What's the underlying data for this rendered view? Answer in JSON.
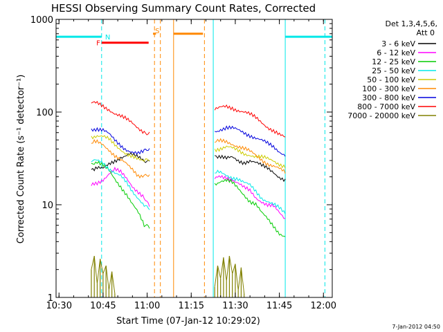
{
  "chart_data": {
    "type": "line",
    "title": "HESSI Observing Summary Count Rates, Corrected",
    "xlabel": "Start Time (07-Jan-12 10:29:02)",
    "ylabel": "Corrected Count Rate (s⁻¹ detector⁻¹)",
    "date_stamp": "7-Jan-2012 04:50",
    "x_unit": "minutes after 10:29:02",
    "xlim": [
      0,
      94
    ],
    "ylim": [
      1,
      1000
    ],
    "y_scale": "log",
    "x_ticks": [
      {
        "label": "10:30",
        "value": 1
      },
      {
        "label": "10:45",
        "value": 16
      },
      {
        "label": "11:00",
        "value": 31
      },
      {
        "label": "11:15",
        "value": 46
      },
      {
        "label": "11:30",
        "value": 61
      },
      {
        "label": "11:45",
        "value": 76
      },
      {
        "label": "12:00",
        "value": 91
      }
    ],
    "y_ticks": [
      {
        "label": "1",
        "value": 1
      },
      {
        "label": "10",
        "value": 10
      },
      {
        "label": "100",
        "value": 100
      },
      {
        "label": "1000",
        "value": 1000
      }
    ],
    "legend": {
      "placement": "right",
      "header": [
        "Det 1,3,4,5,6,",
        "Att 0"
      ]
    },
    "series": [
      {
        "name": "3 - 6 keV",
        "color": "#000000",
        "points": [
          [
            12,
            24
          ],
          [
            14,
            25
          ],
          [
            16,
            24
          ],
          [
            18,
            27
          ],
          [
            20,
            30
          ],
          [
            22,
            33
          ],
          [
            25,
            35
          ],
          [
            28,
            32
          ],
          [
            30,
            30
          ],
          [
            31.8,
            28
          ],
          [
            54,
            34
          ],
          [
            56,
            33
          ],
          [
            58,
            31
          ],
          [
            60,
            32
          ],
          [
            62,
            30
          ],
          [
            64,
            29
          ],
          [
            66,
            30
          ],
          [
            68,
            28
          ],
          [
            70,
            26
          ],
          [
            72,
            25
          ],
          [
            74,
            23
          ],
          [
            76,
            20
          ],
          [
            78,
            18
          ]
        ]
      },
      {
        "name": "6 - 12 keV",
        "color": "#ff00ff",
        "points": [
          [
            12,
            16
          ],
          [
            14,
            17
          ],
          [
            16,
            19
          ],
          [
            18,
            22
          ],
          [
            20,
            24
          ],
          [
            22,
            22
          ],
          [
            24,
            19
          ],
          [
            26,
            16
          ],
          [
            28,
            14
          ],
          [
            30,
            12
          ],
          [
            31.8,
            10
          ],
          [
            54,
            19
          ],
          [
            56,
            20
          ],
          [
            58,
            20
          ],
          [
            60,
            19
          ],
          [
            62,
            17
          ],
          [
            64,
            15
          ],
          [
            66,
            14
          ],
          [
            68,
            12
          ],
          [
            70,
            11
          ],
          [
            72,
            10
          ],
          [
            74,
            9.5
          ],
          [
            76,
            8
          ],
          [
            78,
            7
          ]
        ]
      },
      {
        "name": "12 - 25 keV",
        "color": "#00cc00",
        "points": [
          [
            12,
            28
          ],
          [
            14,
            29
          ],
          [
            16,
            26
          ],
          [
            18,
            23
          ],
          [
            20,
            19
          ],
          [
            22,
            16
          ],
          [
            24,
            13
          ],
          [
            26,
            10
          ],
          [
            28,
            8
          ],
          [
            30,
            6
          ],
          [
            31.8,
            5.5
          ],
          [
            54,
            17
          ],
          [
            56,
            18
          ],
          [
            58,
            18
          ],
          [
            60,
            17
          ],
          [
            62,
            15
          ],
          [
            64,
            13
          ],
          [
            66,
            11
          ],
          [
            68,
            10
          ],
          [
            70,
            8
          ],
          [
            72,
            7
          ],
          [
            74,
            6
          ],
          [
            76,
            5
          ],
          [
            78,
            4.5
          ]
        ]
      },
      {
        "name": "25 - 50 keV",
        "color": "#00e8e8",
        "points": [
          [
            12,
            29
          ],
          [
            14,
            30
          ],
          [
            16,
            29
          ],
          [
            18,
            25
          ],
          [
            20,
            22
          ],
          [
            22,
            20
          ],
          [
            24,
            17
          ],
          [
            26,
            14
          ],
          [
            28,
            12
          ],
          [
            30,
            10
          ],
          [
            31.8,
            9.5
          ],
          [
            54,
            22
          ],
          [
            56,
            22
          ],
          [
            58,
            21
          ],
          [
            60,
            20
          ],
          [
            62,
            19
          ],
          [
            64,
            17
          ],
          [
            66,
            16
          ],
          [
            68,
            14
          ],
          [
            70,
            12
          ],
          [
            72,
            11
          ],
          [
            74,
            10
          ],
          [
            76,
            9
          ],
          [
            78,
            8
          ]
        ]
      },
      {
        "name": "50 - 100 keV",
        "color": "#cccc00",
        "points": [
          [
            12,
            55
          ],
          [
            14,
            56
          ],
          [
            16,
            54
          ],
          [
            18,
            50
          ],
          [
            20,
            44
          ],
          [
            22,
            40
          ],
          [
            24,
            36
          ],
          [
            26,
            33
          ],
          [
            28,
            30
          ],
          [
            30,
            29
          ],
          [
            31.8,
            30
          ],
          [
            54,
            40
          ],
          [
            56,
            41
          ],
          [
            58,
            42
          ],
          [
            60,
            40
          ],
          [
            62,
            38
          ],
          [
            64,
            36
          ],
          [
            66,
            35
          ],
          [
            68,
            33
          ],
          [
            70,
            32
          ],
          [
            72,
            31
          ],
          [
            74,
            30
          ],
          [
            76,
            28
          ],
          [
            78,
            26
          ]
        ]
      },
      {
        "name": "100 - 300 keV",
        "color": "#ff8800",
        "points": [
          [
            12,
            46
          ],
          [
            14,
            47
          ],
          [
            16,
            45
          ],
          [
            18,
            40
          ],
          [
            20,
            34
          ],
          [
            22,
            30
          ],
          [
            24,
            27
          ],
          [
            26,
            24
          ],
          [
            28,
            21
          ],
          [
            30,
            21
          ],
          [
            31.8,
            22
          ],
          [
            54,
            47
          ],
          [
            56,
            48
          ],
          [
            58,
            48
          ],
          [
            60,
            46
          ],
          [
            62,
            43
          ],
          [
            64,
            40
          ],
          [
            66,
            37
          ],
          [
            68,
            34
          ],
          [
            70,
            31
          ],
          [
            72,
            28
          ],
          [
            74,
            26
          ],
          [
            76,
            24
          ],
          [
            78,
            22
          ]
        ]
      },
      {
        "name": "300 - 800 keV",
        "color": "#0000dd",
        "points": [
          [
            12,
            66
          ],
          [
            14,
            67
          ],
          [
            16,
            64
          ],
          [
            18,
            57
          ],
          [
            20,
            49
          ],
          [
            22,
            44
          ],
          [
            24,
            40
          ],
          [
            26,
            37
          ],
          [
            28,
            35
          ],
          [
            30,
            37
          ],
          [
            31.8,
            39
          ],
          [
            54,
            62
          ],
          [
            56,
            66
          ],
          [
            58,
            68
          ],
          [
            60,
            66
          ],
          [
            62,
            63
          ],
          [
            64,
            60
          ],
          [
            66,
            57
          ],
          [
            68,
            53
          ],
          [
            70,
            49
          ],
          [
            72,
            45
          ],
          [
            74,
            42
          ],
          [
            76,
            38
          ],
          [
            78,
            35
          ]
        ]
      },
      {
        "name": "800 - 7000 keV",
        "color": "#ff0000",
        "points": [
          [
            12,
            125
          ],
          [
            14,
            122
          ],
          [
            16,
            115
          ],
          [
            18,
            108
          ],
          [
            20,
            98
          ],
          [
            22,
            90
          ],
          [
            24,
            82
          ],
          [
            26,
            75
          ],
          [
            28,
            68
          ],
          [
            30,
            62
          ],
          [
            31.8,
            60
          ],
          [
            54,
            105
          ],
          [
            56,
            110
          ],
          [
            58,
            114
          ],
          [
            60,
            112
          ],
          [
            62,
            106
          ],
          [
            64,
            100
          ],
          [
            66,
            93
          ],
          [
            68,
            86
          ],
          [
            70,
            78
          ],
          [
            72,
            70
          ],
          [
            74,
            63
          ],
          [
            76,
            56
          ],
          [
            78,
            52
          ]
        ]
      },
      {
        "name": "7000 - 20000 keV",
        "color": "#808000",
        "points": [
          [
            12,
            2
          ],
          [
            13,
            2.8
          ],
          [
            14,
            1.4
          ],
          [
            15,
            2.6
          ],
          [
            16,
            1.8
          ],
          [
            17,
            2.2
          ],
          [
            18,
            1.2
          ],
          [
            19,
            1.9
          ],
          [
            20,
            1.1
          ],
          [
            54,
            1.3
          ],
          [
            55,
            2.2
          ],
          [
            56,
            1.6
          ],
          [
            57,
            2.7
          ],
          [
            58,
            1.5
          ],
          [
            59,
            2.8
          ],
          [
            60,
            1.8
          ],
          [
            61,
            2.3
          ],
          [
            62,
            1.2
          ],
          [
            63,
            2.1
          ],
          [
            64,
            1.1
          ]
        ]
      }
    ],
    "annotations": [
      {
        "label": "N",
        "x": 16,
        "y": 650,
        "color": "#00e8e8"
      },
      {
        "label": "F",
        "x": 13,
        "y": 560,
        "color": "#ff0000"
      },
      {
        "label": "S",
        "x": 33,
        "y": 760,
        "color": "#ff8800"
      }
    ],
    "segments": [
      {
        "name": "night-segment-1",
        "color": "#00e8e8",
        "x": [
          0,
          15.5
        ],
        "y": 650
      },
      {
        "name": "night-segment-2",
        "color": "#00e8e8",
        "x": [
          78,
          94
        ],
        "y": 650
      },
      {
        "name": "flare-segment",
        "color": "#ff0000",
        "x": [
          15.5,
          31.5
        ],
        "y": 560
      },
      {
        "name": "saa-segment-1",
        "color": "#ff8800",
        "x": [
          33,
          34
        ],
        "y": 700
      },
      {
        "name": "saa-segment-2",
        "color": "#ff8800",
        "x": [
          40,
          50
        ],
        "y": 700
      }
    ],
    "vlines": [
      {
        "x": 15.5,
        "color": "#00e8e8",
        "style": "dashed"
      },
      {
        "x": 33.5,
        "color": "#ff8800",
        "style": "dashed"
      },
      {
        "x": 35.5,
        "color": "#ff8800",
        "style": "dashed"
      },
      {
        "x": 40,
        "color": "#ff8800",
        "style": "solid"
      },
      {
        "x": 50.5,
        "color": "#ff8800",
        "style": "dashed"
      },
      {
        "x": 53.5,
        "color": "#00e8e8",
        "style": "solid"
      },
      {
        "x": 78,
        "color": "#00e8e8",
        "style": "solid"
      },
      {
        "x": 91.5,
        "color": "#00e8e8",
        "style": "dashed"
      }
    ],
    "grid": false
  }
}
